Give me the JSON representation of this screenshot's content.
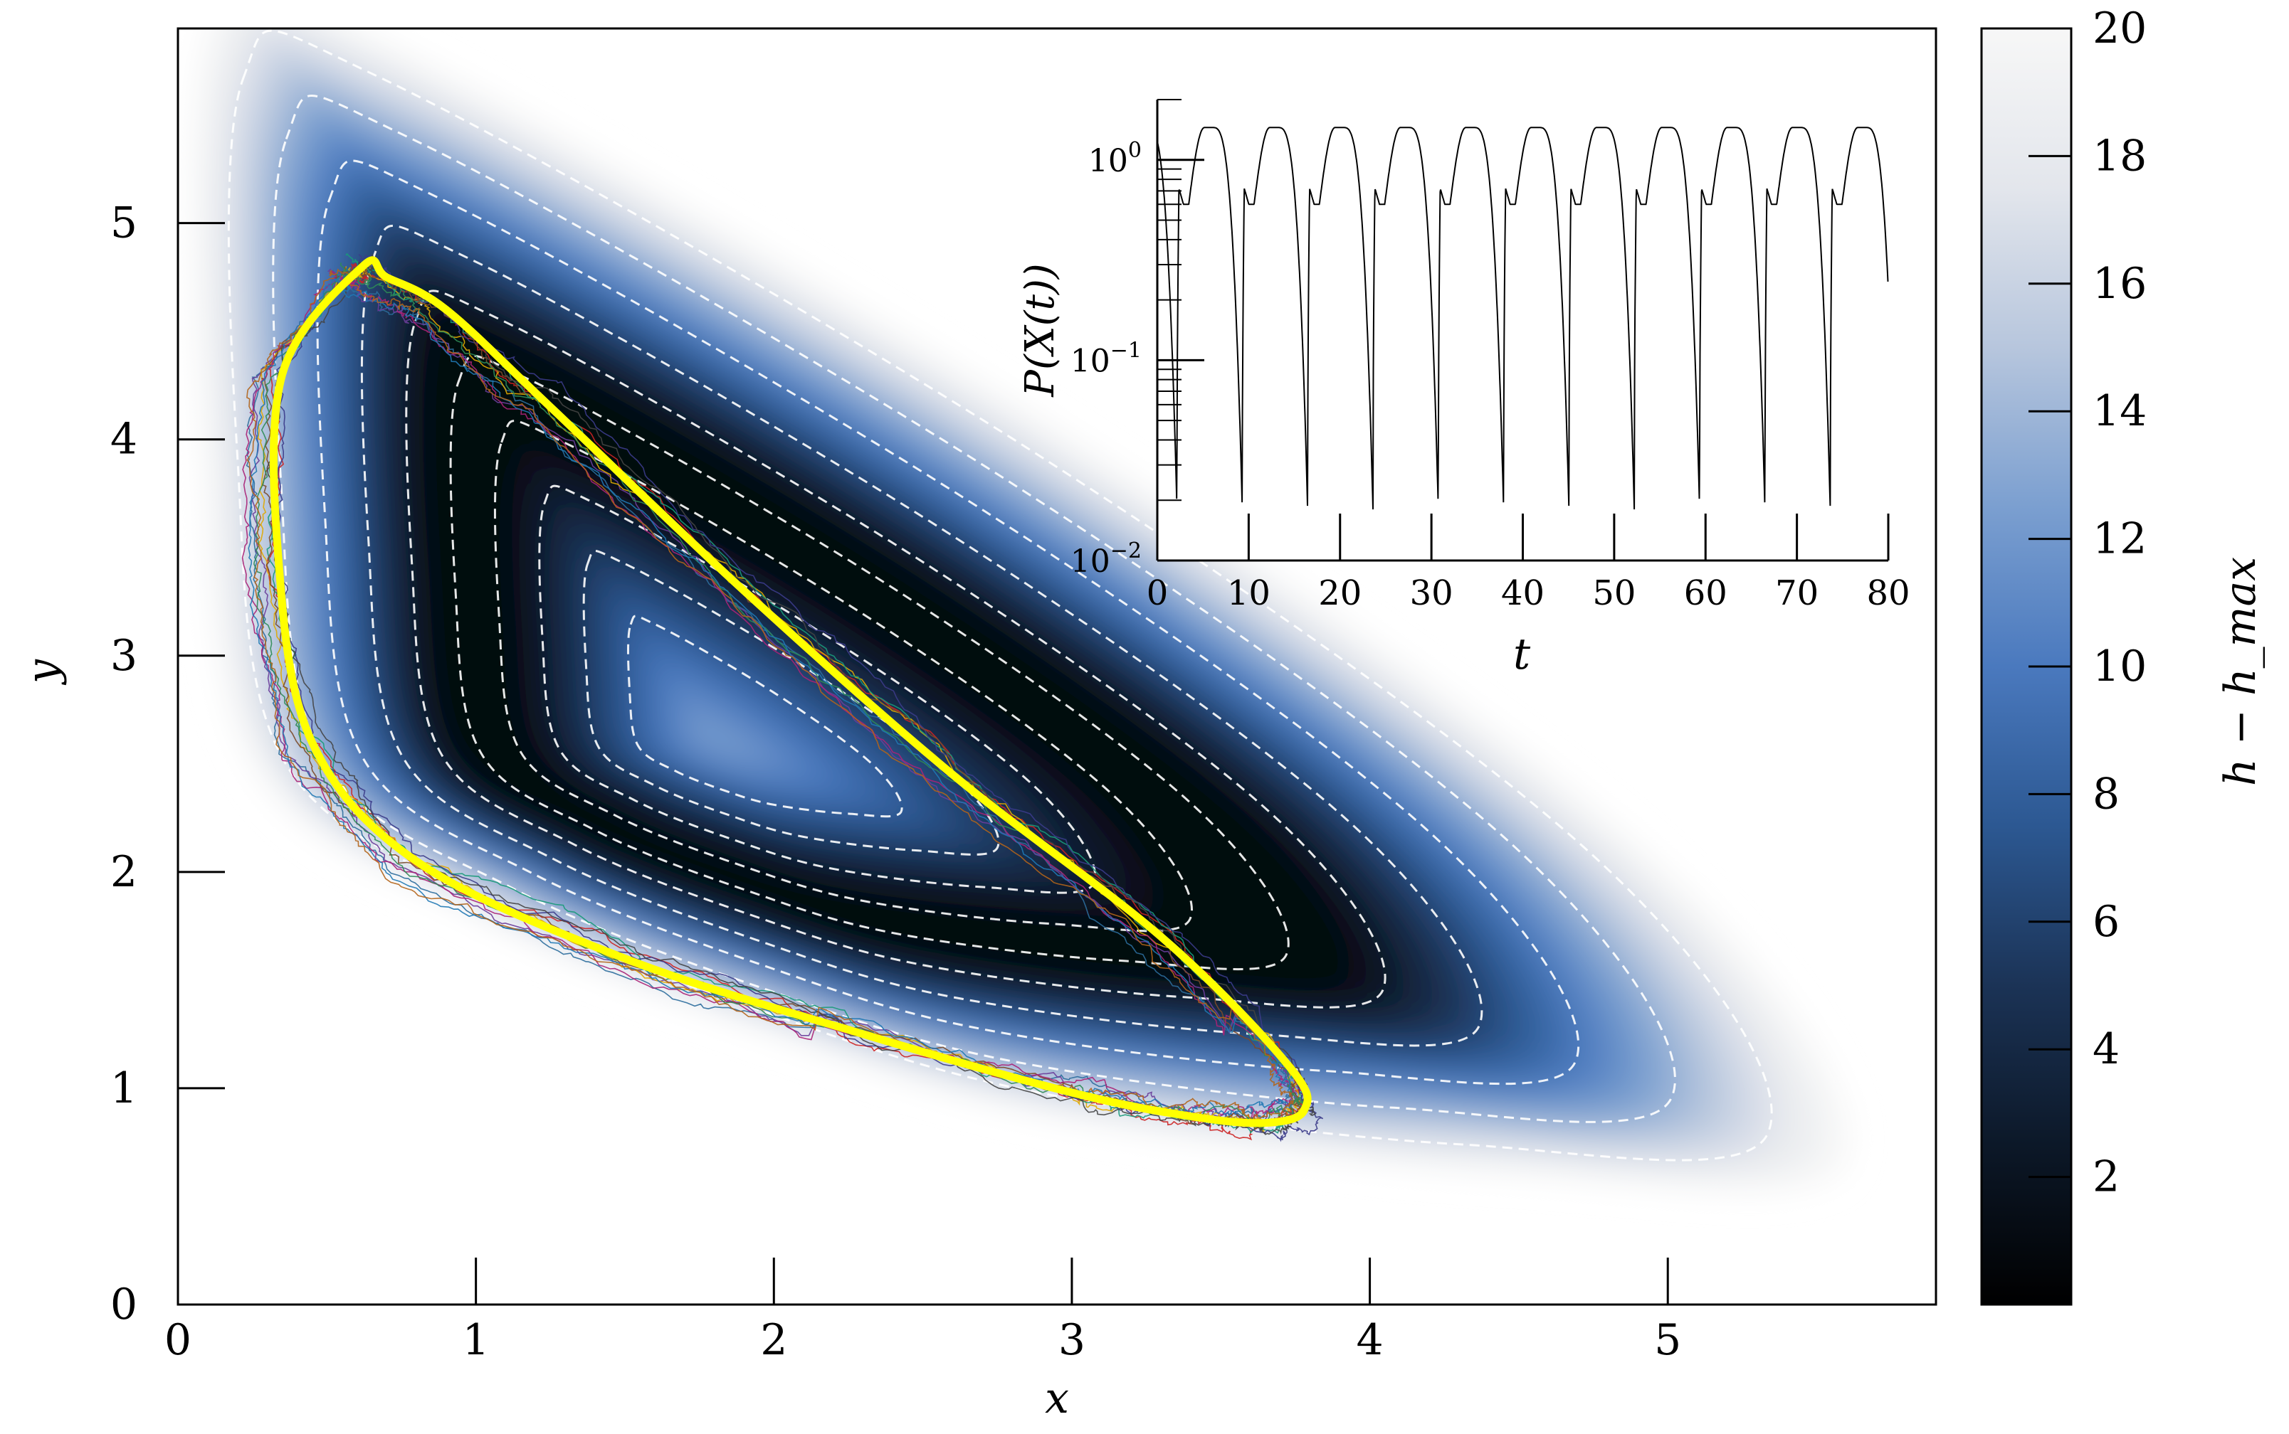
{
  "chart_data": [
    {
      "id": "main",
      "type": "heatmap",
      "title": "",
      "xlabel": "x",
      "ylabel": "y",
      "xlim": [
        0,
        5.9
      ],
      "ylim": [
        0,
        5.9
      ],
      "xticks": [
        0,
        1,
        2,
        3,
        4,
        5
      ],
      "xtick_labels": [
        "0",
        "1",
        "2",
        "3",
        "4",
        "5"
      ],
      "yticks": [
        0,
        1,
        2,
        3,
        4,
        5
      ],
      "ytick_labels": [
        "0",
        "1",
        "2",
        "3",
        "4",
        "5"
      ],
      "colormap": [
        "#000000",
        "#0c1828",
        "#1b3356",
        "#2c5892",
        "#4a79be",
        "#7b9fd0",
        "#b7c6dd",
        "#e3e6ec",
        "#f7f7f7"
      ],
      "grid": false,
      "density_region": [
        [
          0.1,
          5.9
        ],
        [
          0.6,
          5.9
        ],
        [
          3.0,
          4.0
        ],
        [
          5.0,
          2.0
        ],
        [
          5.6,
          0.65
        ],
        [
          4.5,
          0.6
        ],
        [
          3.0,
          0.85
        ],
        [
          2.0,
          1.25
        ],
        [
          1.0,
          1.8
        ],
        [
          0.25,
          2.5
        ],
        [
          0.08,
          4.0
        ]
      ],
      "level_curves": {
        "center": [
          1.8,
          2.6
        ],
        "count": 10,
        "style": "dashed",
        "color": "#ffffff"
      },
      "limit_cycle": {
        "color": "#ffff00",
        "points": [
          [
            0.62,
            4.8
          ],
          [
            0.35,
            4.3
          ],
          [
            0.34,
            3.4
          ],
          [
            0.45,
            2.6
          ],
          [
            0.8,
            2.05
          ],
          [
            1.5,
            1.6
          ],
          [
            2.3,
            1.25
          ],
          [
            3.0,
            0.98
          ],
          [
            3.4,
            0.87
          ],
          [
            3.65,
            0.84
          ],
          [
            3.78,
            0.9
          ],
          [
            3.73,
            1.1
          ],
          [
            3.3,
            1.7
          ],
          [
            2.6,
            2.45
          ],
          [
            1.9,
            3.3
          ],
          [
            1.25,
            4.15
          ],
          [
            0.9,
            4.6
          ],
          [
            0.7,
            4.75
          ],
          [
            0.62,
            4.8
          ]
        ]
      },
      "sample_paths": {
        "count": 12,
        "colors": [
          "#cc2222",
          "#2b6d9c",
          "#6a3d9a",
          "#e0a800",
          "#1a9a7a",
          "#3b3b8a",
          "#7a4a2a",
          "#aa2277",
          "#2e8b57",
          "#444444",
          "#1f78b4",
          "#b2641a"
        ]
      },
      "colorbar": {
        "label": "h − h_max",
        "ticks": [
          2,
          4,
          6,
          8,
          10,
          12,
          14,
          16,
          18,
          20
        ],
        "range": [
          0,
          20
        ]
      }
    },
    {
      "id": "inset",
      "type": "line",
      "title": "",
      "xlabel": "t",
      "ylabel": "P(X(t))",
      "xlim": [
        0,
        80
      ],
      "ylim": [
        0.01,
        2
      ],
      "yscale": "log",
      "xticks": [
        0,
        10,
        20,
        30,
        40,
        50,
        60,
        70,
        80
      ],
      "xtick_labels": [
        "0",
        "10",
        "20",
        "30",
        "40",
        "50",
        "60",
        "70",
        "80"
      ],
      "yticks": [
        0.01,
        0.1,
        1
      ],
      "ytick_labels": [
        "10",
        "10",
        "10"
      ],
      "ytick_exponents": [
        "−2",
        "−1",
        "0"
      ],
      "period": 7.15,
      "series": [
        {
          "color": "#000000",
          "peak_value": 1.45,
          "shoulder_value": 0.72,
          "dip_value": 0.6,
          "trough_value": 0.018
        }
      ]
    }
  ]
}
